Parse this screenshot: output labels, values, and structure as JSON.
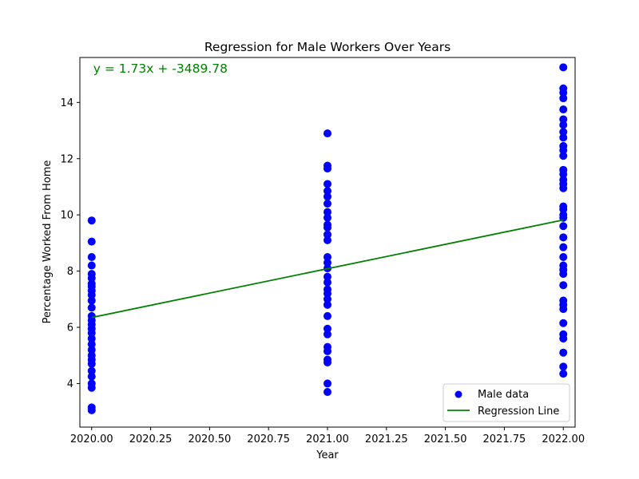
{
  "chart_data": {
    "type": "scatter",
    "title": "Regression for Male Workers Over Years",
    "xlabel": "Year",
    "ylabel": "Percentage Worked From Home",
    "xlim": [
      2019.95,
      2022.05
    ],
    "ylim": [
      2.45,
      15.6
    ],
    "x_ticks": [
      "2020.00",
      "2020.25",
      "2020.50",
      "2020.75",
      "2021.00",
      "2021.25",
      "2021.50",
      "2021.75",
      "2022.00"
    ],
    "x_tick_values": [
      2020.0,
      2020.25,
      2020.5,
      2020.75,
      2021.0,
      2021.25,
      2021.5,
      2021.75,
      2022.0
    ],
    "y_ticks": [
      "4",
      "6",
      "8",
      "10",
      "12",
      "14"
    ],
    "y_tick_values": [
      4,
      6,
      8,
      10,
      12,
      14
    ],
    "grid": false,
    "legend_placement": "bottom-right",
    "annotation": {
      "text": "y = 1.73x + -3489.78",
      "color": "#008000",
      "position": [
        2020.0,
        15.2
      ]
    },
    "series": [
      {
        "name": "Male data",
        "kind": "scatter",
        "color": "#0000ff",
        "points": [
          [
            2020,
            9.8
          ],
          [
            2020,
            9.05
          ],
          [
            2020,
            8.5
          ],
          [
            2020,
            8.2
          ],
          [
            2020,
            7.9
          ],
          [
            2020,
            7.75
          ],
          [
            2020,
            7.55
          ],
          [
            2020,
            7.45
          ],
          [
            2020,
            7.3
          ],
          [
            2020,
            7.15
          ],
          [
            2020,
            6.95
          ],
          [
            2020,
            6.7
          ],
          [
            2020,
            6.4
          ],
          [
            2020,
            6.25
          ],
          [
            2020,
            6.1
          ],
          [
            2020,
            5.95
          ],
          [
            2020,
            5.8
          ],
          [
            2020,
            5.6
          ],
          [
            2020,
            5.4
          ],
          [
            2020,
            5.2
          ],
          [
            2020,
            5.0
          ],
          [
            2020,
            4.85
          ],
          [
            2020,
            4.7
          ],
          [
            2020,
            4.45
          ],
          [
            2020,
            4.25
          ],
          [
            2020,
            4.0
          ],
          [
            2020,
            3.85
          ],
          [
            2020,
            3.15
          ],
          [
            2020,
            3.05
          ],
          [
            2021,
            12.9
          ],
          [
            2021,
            11.75
          ],
          [
            2021,
            11.65
          ],
          [
            2021,
            11.1
          ],
          [
            2021,
            10.85
          ],
          [
            2021,
            10.65
          ],
          [
            2021,
            10.4
          ],
          [
            2021,
            10.1
          ],
          [
            2021,
            9.9
          ],
          [
            2021,
            9.65
          ],
          [
            2021,
            9.55
          ],
          [
            2021,
            9.3
          ],
          [
            2021,
            9.1
          ],
          [
            2021,
            8.5
          ],
          [
            2021,
            8.3
          ],
          [
            2021,
            8.1
          ],
          [
            2021,
            7.8
          ],
          [
            2021,
            7.6
          ],
          [
            2021,
            7.35
          ],
          [
            2021,
            7.2
          ],
          [
            2021,
            7.0
          ],
          [
            2021,
            6.8
          ],
          [
            2021,
            6.4
          ],
          [
            2021,
            5.95
          ],
          [
            2021,
            5.75
          ],
          [
            2021,
            5.3
          ],
          [
            2021,
            5.15
          ],
          [
            2021,
            4.85
          ],
          [
            2021,
            4.75
          ],
          [
            2021,
            4.0
          ],
          [
            2021,
            3.7
          ],
          [
            2022,
            15.25
          ],
          [
            2022,
            14.5
          ],
          [
            2022,
            14.35
          ],
          [
            2022,
            14.15
          ],
          [
            2022,
            13.75
          ],
          [
            2022,
            13.4
          ],
          [
            2022,
            13.2
          ],
          [
            2022,
            12.95
          ],
          [
            2022,
            12.75
          ],
          [
            2022,
            12.45
          ],
          [
            2022,
            12.3
          ],
          [
            2022,
            12.1
          ],
          [
            2022,
            11.6
          ],
          [
            2022,
            11.45
          ],
          [
            2022,
            11.25
          ],
          [
            2022,
            11.1
          ],
          [
            2022,
            10.95
          ],
          [
            2022,
            10.3
          ],
          [
            2022,
            10.2
          ],
          [
            2022,
            10.0
          ],
          [
            2022,
            9.9
          ],
          [
            2022,
            9.6
          ],
          [
            2022,
            9.2
          ],
          [
            2022,
            8.85
          ],
          [
            2022,
            8.5
          ],
          [
            2022,
            8.2
          ],
          [
            2022,
            8.05
          ],
          [
            2022,
            7.9
          ],
          [
            2022,
            7.5
          ],
          [
            2022,
            6.95
          ],
          [
            2022,
            6.8
          ],
          [
            2022,
            6.65
          ],
          [
            2022,
            6.15
          ],
          [
            2022,
            5.75
          ],
          [
            2022,
            5.6
          ],
          [
            2022,
            5.1
          ],
          [
            2022,
            4.6
          ],
          [
            2022,
            4.35
          ]
        ]
      },
      {
        "name": "Regression Line",
        "kind": "line",
        "color": "#008000",
        "points": [
          [
            2020,
            6.35
          ],
          [
            2022,
            9.82
          ]
        ]
      }
    ]
  }
}
